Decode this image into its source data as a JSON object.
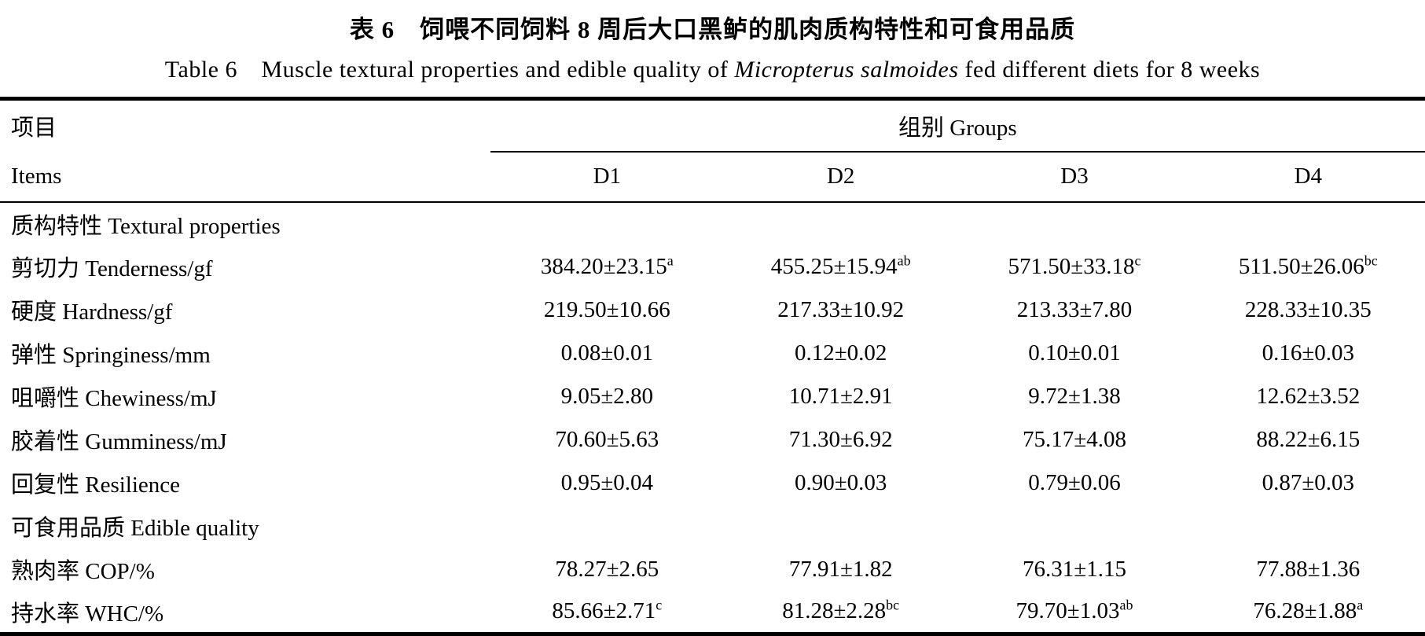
{
  "titles": {
    "zh": "表 6 饲喂不同饲料 8 周后大口黑鲈的肌肉质构特性和可食用品质",
    "en_prefix": "Table 6 Muscle textural properties and edible quality of ",
    "en_species": "Micropterus salmoides",
    "en_suffix": " fed different diets for 8 weeks"
  },
  "header": {
    "items_zh": "项目",
    "items_en": "Items",
    "groups_label": "组别 Groups"
  },
  "chart_data": {
    "type": "table",
    "columns": [
      "D1",
      "D2",
      "D3",
      "D4"
    ],
    "rows": [
      {
        "type": "section",
        "label": "质构特性 Textural properties"
      },
      {
        "type": "data",
        "label": "剪切力 Tenderness/gf",
        "cells": [
          {
            "value": "384.20±23.15",
            "sup": "a"
          },
          {
            "value": "455.25±15.94",
            "sup": "ab"
          },
          {
            "value": "571.50±33.18",
            "sup": "c"
          },
          {
            "value": "511.50±26.06",
            "sup": "bc"
          }
        ]
      },
      {
        "type": "data",
        "label": "硬度 Hardness/gf",
        "cells": [
          {
            "value": "219.50±10.66",
            "sup": ""
          },
          {
            "value": "217.33±10.92",
            "sup": ""
          },
          {
            "value": "213.33±7.80",
            "sup": ""
          },
          {
            "value": "228.33±10.35",
            "sup": ""
          }
        ]
      },
      {
        "type": "data",
        "label": "弹性 Springiness/mm",
        "cells": [
          {
            "value": "0.08±0.01",
            "sup": ""
          },
          {
            "value": "0.12±0.02",
            "sup": ""
          },
          {
            "value": "0.10±0.01",
            "sup": ""
          },
          {
            "value": "0.16±0.03",
            "sup": ""
          }
        ]
      },
      {
        "type": "data",
        "label": "咀嚼性 Chewiness/mJ",
        "cells": [
          {
            "value": "9.05±2.80",
            "sup": ""
          },
          {
            "value": "10.71±2.91",
            "sup": ""
          },
          {
            "value": "9.72±1.38",
            "sup": ""
          },
          {
            "value": "12.62±3.52",
            "sup": ""
          }
        ]
      },
      {
        "type": "data",
        "label": "胶着性 Gumminess/mJ",
        "cells": [
          {
            "value": "70.60±5.63",
            "sup": ""
          },
          {
            "value": "71.30±6.92",
            "sup": ""
          },
          {
            "value": "75.17±4.08",
            "sup": ""
          },
          {
            "value": "88.22±6.15",
            "sup": ""
          }
        ]
      },
      {
        "type": "data",
        "label": "回复性 Resilience",
        "cells": [
          {
            "value": "0.95±0.04",
            "sup": ""
          },
          {
            "value": "0.90±0.03",
            "sup": ""
          },
          {
            "value": "0.79±0.06",
            "sup": ""
          },
          {
            "value": "0.87±0.03",
            "sup": ""
          }
        ]
      },
      {
        "type": "section",
        "label": "可食用品质 Edible quality"
      },
      {
        "type": "data",
        "label": "熟肉率 COP/%",
        "cells": [
          {
            "value": "78.27±2.65",
            "sup": ""
          },
          {
            "value": "77.91±1.82",
            "sup": ""
          },
          {
            "value": "76.31±1.15",
            "sup": ""
          },
          {
            "value": "77.88±1.36",
            "sup": ""
          }
        ]
      },
      {
        "type": "data",
        "label": "持水率 WHC/%",
        "cells": [
          {
            "value": "85.66±2.71",
            "sup": "c"
          },
          {
            "value": "81.28±2.28",
            "sup": "bc"
          },
          {
            "value": "79.70±1.03",
            "sup": "ab"
          },
          {
            "value": "76.28±1.88",
            "sup": "a"
          }
        ]
      }
    ]
  },
  "colors": {
    "text": "#000000",
    "background": "#ffffff",
    "rule": "#000000"
  }
}
